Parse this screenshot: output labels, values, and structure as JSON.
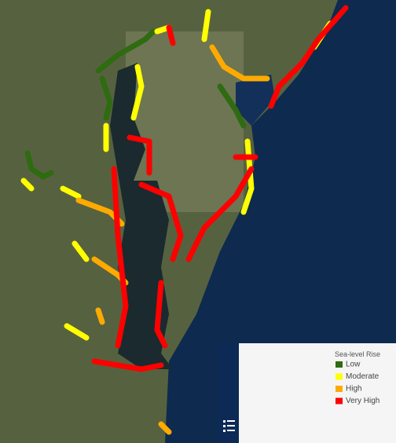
{
  "legend": {
    "title": "Sea-level Rise",
    "items": [
      {
        "label": "Low",
        "color": "#2f6b10"
      },
      {
        "label": "Moderate",
        "color": "#ffff00"
      },
      {
        "label": "High",
        "color": "#ffaa00"
      },
      {
        "label": "Very High",
        "color": "#ff0000"
      }
    ]
  }
}
